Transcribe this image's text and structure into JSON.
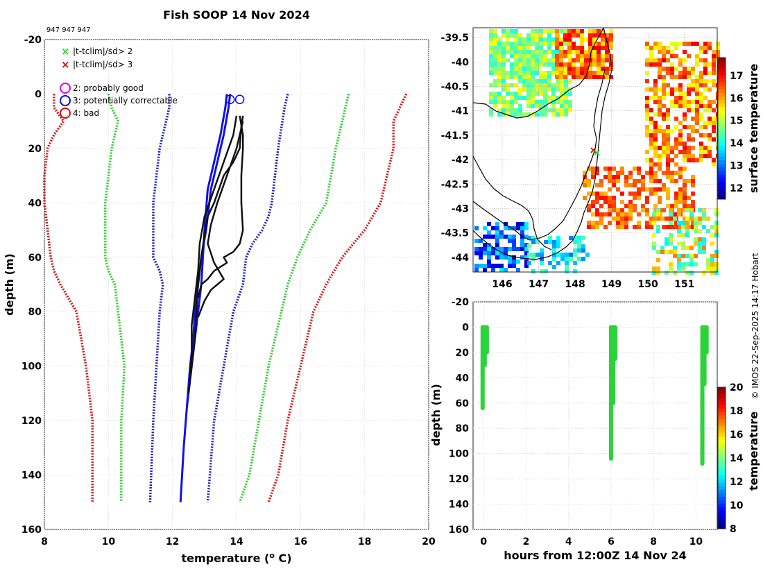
{
  "figure": {
    "title": "Fish SOOP 14 Nov 2024",
    "ids_label": "947 947 947",
    "credit": "© IMOS 22-Sep-2025 14:17 Hobart"
  },
  "profile_chart": {
    "type": "line",
    "xlabel": "temperature (",
    "xlabel_sup": "o",
    "xlabel_suffix": " C)",
    "ylabel": "depth (m)",
    "xlim": [
      8,
      20
    ],
    "ylim": [
      -20,
      160
    ],
    "xticks": [
      "8",
      "10",
      "12",
      "14",
      "16",
      "18",
      "20"
    ],
    "yticks": [
      "-20",
      "0",
      "20",
      "40",
      "60",
      "80",
      "100",
      "120",
      "140",
      "160"
    ],
    "legend_flags": [
      {
        "label": "|t-tclim|/sd> 2",
        "color": "#2fd22f",
        "marker": "x"
      },
      {
        "label": "|t-tclim|/sd> 3",
        "color": "#e00000",
        "marker": "x"
      }
    ],
    "legend_qc": [
      {
        "label": "2: probably good",
        "color": "#e600e6",
        "marker": "o"
      },
      {
        "label": "3: potentially correctable",
        "color": "#0000ff",
        "marker": "o"
      },
      {
        "label": "4: bad",
        "color": "#e00000",
        "marker": "o"
      }
    ],
    "climatology": [
      {
        "name": "clim -3sd",
        "color": "#d11a1a",
        "style": "dotted",
        "x": [
          8.3,
          8.3,
          8.6,
          8.3,
          8.1,
          8.0,
          8.0,
          8.1,
          8.2,
          8.3,
          8.5,
          9.0,
          9.3,
          9.4,
          9.5,
          9.5,
          9.5
        ],
        "y": [
          0,
          5,
          10,
          15,
          20,
          30,
          40,
          50,
          60,
          65,
          70,
          80,
          100,
          110,
          120,
          140,
          150
        ]
      },
      {
        "name": "clim -2sd",
        "color": "#33cc33",
        "style": "dotted",
        "x": [
          10.0,
          10.1,
          10.3,
          10.1,
          10.0,
          9.9,
          9.9,
          9.9,
          10.0,
          10.2,
          10.3,
          10.5,
          10.4,
          10.4
        ],
        "y": [
          0,
          5,
          10,
          20,
          30,
          40,
          50,
          60,
          65,
          70,
          80,
          100,
          120,
          150
        ]
      },
      {
        "name": "clim -1sd",
        "color": "#1f1fc8",
        "style": "dotted",
        "x": [
          11.9,
          11.9,
          11.8,
          11.6,
          11.5,
          11.4,
          11.4,
          11.4,
          11.6,
          11.7,
          11.6,
          11.5,
          11.4,
          11.3
        ],
        "y": [
          0,
          5,
          10,
          20,
          30,
          40,
          50,
          60,
          65,
          70,
          80,
          100,
          120,
          150
        ]
      },
      {
        "name": "clim +1sd",
        "color": "#1f1fc8",
        "style": "dotted",
        "x": [
          15.6,
          15.5,
          15.3,
          15.1,
          15.0,
          14.8,
          14.5,
          14.3,
          14.2,
          13.9,
          13.6,
          13.3,
          13.1
        ],
        "y": [
          0,
          5,
          20,
          40,
          45,
          50,
          55,
          60,
          70,
          80,
          100,
          120,
          150
        ]
      },
      {
        "name": "clim +2sd",
        "color": "#33cc33",
        "style": "dotted",
        "x": [
          17.5,
          17.4,
          17.3,
          17.1,
          16.8,
          16.3,
          15.9,
          15.6,
          15.4,
          15.0,
          14.7,
          14.4,
          14.1
        ],
        "y": [
          0,
          5,
          10,
          20,
          40,
          50,
          60,
          70,
          80,
          100,
          120,
          140,
          150
        ]
      },
      {
        "name": "clim +3sd",
        "color": "#d11a1a",
        "style": "dotted",
        "x": [
          19.3,
          19.1,
          18.9,
          18.9,
          18.5,
          18.0,
          17.3,
          16.8,
          16.4,
          16.0,
          15.6,
          15.3,
          15.0
        ],
        "y": [
          0,
          5,
          10,
          20,
          40,
          50,
          60,
          70,
          80,
          100,
          120,
          140,
          150
        ]
      }
    ],
    "profiles": [
      {
        "color": "#1010ee",
        "x": [
          13.7,
          13.65,
          13.5,
          13.3,
          13.1,
          13.0,
          12.95,
          12.9,
          12.8,
          12.7,
          12.6,
          12.5,
          12.45
        ],
        "y": [
          0,
          5,
          15,
          25,
          35,
          50,
          60,
          70,
          80,
          90,
          100,
          110,
          115
        ]
      },
      {
        "color": "#1010ee",
        "x": [
          13.8,
          13.75,
          13.6,
          13.4,
          13.2,
          13.05,
          12.9,
          12.8,
          12.7,
          12.65,
          12.55,
          12.45,
          12.35,
          12.25
        ],
        "y": [
          0,
          5,
          15,
          25,
          35,
          50,
          60,
          70,
          80,
          90,
          100,
          115,
          130,
          150
        ]
      },
      {
        "color": "#111111",
        "x": [
          14.2,
          14.15,
          14.1,
          13.9,
          13.6,
          13.3,
          13.1,
          13.0,
          12.9,
          12.8,
          12.75,
          12.7,
          12.6,
          12.5
        ],
        "y": [
          8,
          12,
          20,
          25,
          30,
          40,
          45,
          52,
          60,
          70,
          80,
          90,
          100,
          110
        ]
      },
      {
        "color": "#111111",
        "x": [
          14.1,
          14.2,
          14.2,
          14.15,
          14.15,
          14.2,
          14.1,
          13.9,
          13.6,
          13.7,
          13.3,
          13.1,
          12.9,
          12.8
        ],
        "y": [
          8,
          15,
          20,
          30,
          40,
          50,
          55,
          58,
          60,
          62,
          65,
          68,
          70,
          75
        ]
      },
      {
        "color": "#111111",
        "x": [
          14.0,
          13.9,
          13.6,
          13.3,
          13.0,
          12.85,
          12.8,
          12.7,
          12.6,
          12.6,
          12.55
        ],
        "y": [
          8,
          15,
          25,
          35,
          45,
          55,
          65,
          75,
          85,
          95,
          105
        ]
      },
      {
        "color": "#111111",
        "x": [
          14.2,
          14.0,
          13.7,
          13.4,
          13.2,
          13.1,
          13.3,
          13.6,
          13.2,
          13.0,
          12.8
        ],
        "y": [
          10,
          20,
          30,
          40,
          48,
          55,
          62,
          68,
          72,
          76,
          82
        ]
      }
    ],
    "surface_markers": [
      {
        "x": 13.8,
        "y": 2,
        "color": "#0000ff"
      },
      {
        "x": 14.1,
        "y": 2,
        "color": "#0000ff"
      }
    ]
  },
  "map_chart": {
    "type": "heatmap",
    "xticks": [
      "146",
      "147",
      "148",
      "149",
      "150",
      "151"
    ],
    "yticks": [
      "-39.5",
      "-40",
      "-40.5",
      "-41",
      "-41.5",
      "-42",
      "-42.5",
      "-43",
      "-43.5",
      "-44"
    ],
    "xlim": [
      145.2,
      151.9
    ],
    "ylim": [
      -44.3,
      -39.3
    ],
    "colorbar_label": "surface temperature",
    "colorbar_ticks": [
      "12",
      "13",
      "14",
      "15",
      "16",
      "17"
    ],
    "colorbar_range": [
      11.5,
      17.8
    ],
    "track_points": [
      {
        "lon": 148.5,
        "lat": -41.8,
        "color": "#e00000"
      },
      {
        "lon": 148.6,
        "lat": -41.85,
        "color": "#2fd22f"
      }
    ]
  },
  "time_chart": {
    "type": "scatter",
    "xlabel": "hours from 12:00Z 14 Nov 24",
    "ylabel": "depth (m)",
    "xlim": [
      -0.5,
      11
    ],
    "ylim": [
      -20,
      160
    ],
    "xticks": [
      "0",
      "2",
      "4",
      "6",
      "8",
      "10"
    ],
    "yticks": [
      "-20",
      "0",
      "20",
      "40",
      "60",
      "80",
      "100",
      "120",
      "140",
      "160"
    ],
    "colorbar_label": "temperature",
    "colorbar_ticks": [
      "8",
      "10",
      "12",
      "14",
      "16",
      "18",
      "20"
    ],
    "colorbar_range": [
      8,
      20
    ],
    "casts": [
      {
        "x": [
          -0.05,
          0.05,
          0.15
        ],
        "max_depth": [
          64,
          30,
          20
        ],
        "color": "#2bd33a"
      },
      {
        "x": [
          6.0,
          6.1,
          6.2
        ],
        "max_depth": [
          104,
          60,
          25
        ],
        "color": "#2bd33a"
      },
      {
        "x": [
          10.3,
          10.4,
          10.5
        ],
        "max_depth": [
          108,
          45,
          20
        ],
        "color": "#2bd33a"
      }
    ]
  }
}
